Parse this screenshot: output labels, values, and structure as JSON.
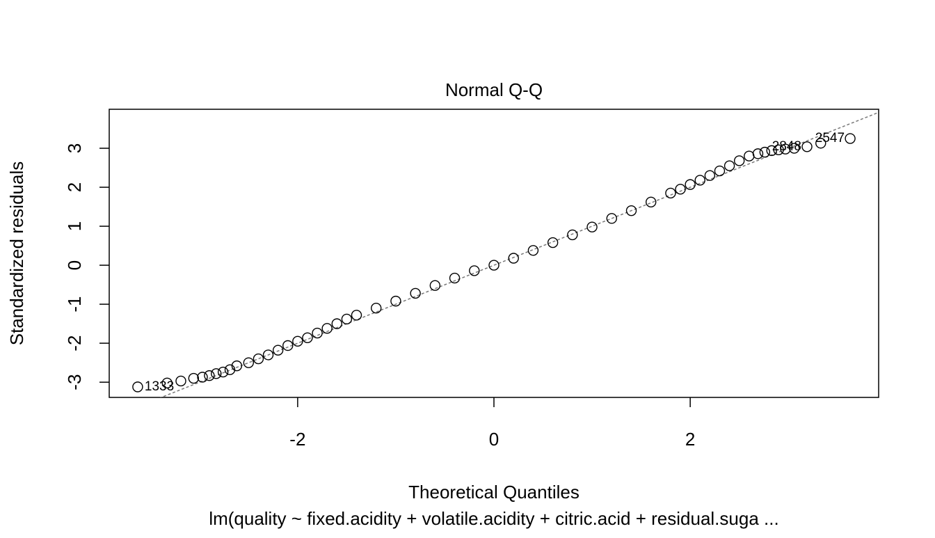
{
  "chart_data": {
    "type": "scatter",
    "title": "Normal Q-Q",
    "xlabel": "Theoretical Quantiles",
    "ylabel": "Standardized residuals",
    "subtitle": "lm(quality ~ fixed.acidity + volatile.acidity + citric.acid + residual.suga ...",
    "xlim": [
      -3.92,
      3.92
    ],
    "ylim": [
      -3.39,
      4.0
    ],
    "xticks": [
      -2,
      0,
      2
    ],
    "yticks": [
      -3,
      -2,
      -1,
      0,
      1,
      2,
      3
    ],
    "color": "#000000",
    "qq_line": {
      "slope": 1.0,
      "intercept": 0.0,
      "color": "#777777"
    },
    "x": [
      -3.63,
      -3.33,
      -3.19,
      -3.06,
      -2.97,
      -2.9,
      -2.83,
      -2.76,
      -2.69,
      -2.62,
      -2.5,
      -2.4,
      -2.3,
      -2.2,
      -2.1,
      -2.0,
      -1.9,
      -1.8,
      -1.7,
      -1.6,
      -1.5,
      -1.4,
      -1.2,
      -1.0,
      -0.8,
      -0.6,
      -0.4,
      -0.2,
      0,
      0.2,
      0.4,
      0.6,
      0.8,
      1.0,
      1.2,
      1.4,
      1.6,
      1.8,
      1.9,
      2.0,
      2.1,
      2.2,
      2.3,
      2.4,
      2.5,
      2.6,
      2.69,
      2.76,
      2.83,
      2.9,
      2.97,
      3.06,
      3.19,
      3.33,
      3.63
    ],
    "y": [
      -3.12,
      -3.02,
      -2.97,
      -2.9,
      -2.87,
      -2.83,
      -2.78,
      -2.74,
      -2.68,
      -2.58,
      -2.5,
      -2.4,
      -2.3,
      -2.18,
      -2.06,
      -1.95,
      -1.86,
      -1.74,
      -1.62,
      -1.5,
      -1.38,
      -1.28,
      -1.1,
      -0.92,
      -0.72,
      -0.52,
      -0.33,
      -0.14,
      0.0,
      0.18,
      0.38,
      0.58,
      0.78,
      0.98,
      1.2,
      1.4,
      1.62,
      1.85,
      1.95,
      2.07,
      2.18,
      2.3,
      2.42,
      2.55,
      2.68,
      2.8,
      2.86,
      2.9,
      2.94,
      2.96,
      2.98,
      3.0,
      3.04,
      3.13,
      3.25
    ],
    "point_labels": [
      "1333",
      null,
      null,
      null,
      null,
      null,
      null,
      null,
      null,
      null,
      null,
      null,
      null,
      null,
      null,
      null,
      null,
      null,
      null,
      null,
      null,
      null,
      null,
      null,
      null,
      null,
      null,
      null,
      null,
      null,
      null,
      null,
      null,
      null,
      null,
      null,
      null,
      null,
      null,
      null,
      null,
      null,
      null,
      null,
      null,
      null,
      null,
      null,
      null,
      null,
      null,
      null,
      "2848",
      null,
      "2547"
    ]
  }
}
